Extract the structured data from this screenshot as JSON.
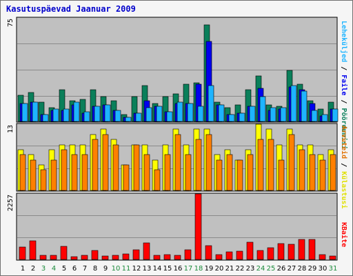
{
  "title": "Kasutuspäevad Jaanuar 2009",
  "colors": {
    "background": "#c0c0c0",
    "grid": "#8a8a8a",
    "visits": "#0a7f5a",
    "pages": "#0000ee",
    "files": "#1eb4ff",
    "hosts": "#ff8000",
    "bytes": "#ff0000",
    "weekend_label": "#1a8a3a",
    "hosts_label": "#e07000",
    "bytes_label": "#ff0000"
  },
  "chart_data": [
    {
      "type": "bar",
      "panel": "hits",
      "ymax_label": "75",
      "ylim": [
        0,
        75
      ],
      "categories": [
        "1",
        "2",
        "3",
        "4",
        "5",
        "6",
        "7",
        "8",
        "9",
        "10",
        "11",
        "12",
        "13",
        "14",
        "15",
        "16",
        "17",
        "18",
        "19",
        "20",
        "21",
        "22",
        "23",
        "24",
        "25",
        "26",
        "27",
        "28",
        "29",
        "30",
        "31"
      ],
      "series": [
        {
          "name": "Pöördumisi",
          "values": [
            19,
            21,
            14,
            10,
            23,
            15,
            16,
            23,
            18,
            15,
            5,
            18,
            26,
            13,
            18,
            20,
            27,
            28,
            70,
            14,
            10,
            12,
            23,
            33,
            12,
            11,
            37,
            27,
            15,
            9,
            14
          ]
        },
        {
          "name": "Faile",
          "values": [
            13,
            14,
            5,
            8,
            8,
            12,
            6,
            11,
            12,
            8,
            3,
            6,
            15,
            11,
            7,
            13,
            13,
            27,
            58,
            12,
            5,
            6,
            11,
            24,
            8,
            9,
            25,
            23,
            13,
            4,
            9
          ]
        },
        {
          "name": "Leheküljed",
          "values": [
            13,
            14,
            5,
            9,
            9,
            14,
            7,
            11,
            12,
            8,
            3,
            6,
            10,
            11,
            7,
            14,
            13,
            11,
            26,
            12,
            5,
            6,
            11,
            18,
            10,
            10,
            26,
            22,
            8,
            5,
            9
          ]
        }
      ],
      "side_labels": [
        "Pöördumisi",
        "Faile",
        "Leheküljed"
      ]
    },
    {
      "type": "bar",
      "panel": "visits",
      "ymax_label": "13",
      "ylim": [
        0,
        13
      ],
      "categories": [
        "1",
        "2",
        "3",
        "4",
        "5",
        "6",
        "7",
        "8",
        "9",
        "10",
        "11",
        "12",
        "13",
        "14",
        "15",
        "16",
        "17",
        "18",
        "19",
        "20",
        "21",
        "22",
        "23",
        "24",
        "25",
        "26",
        "27",
        "28",
        "29",
        "30",
        "31"
      ],
      "series": [
        {
          "name": "Külastusi",
          "values": [
            8,
            7,
            5,
            8,
            9,
            9,
            9,
            11,
            12,
            10,
            5,
            9,
            9,
            6,
            9,
            12,
            9,
            12,
            12,
            7,
            8,
            6,
            8,
            13,
            12,
            9,
            12,
            9,
            9,
            7,
            8
          ]
        },
        {
          "name": "Arvuteid",
          "values": [
            7,
            6,
            4,
            6,
            8,
            7,
            7,
            10,
            11,
            9,
            5,
            9,
            7,
            4,
            7,
            11,
            7,
            10,
            11,
            6,
            7,
            6,
            7,
            10,
            10,
            6,
            11,
            8,
            7,
            6,
            7
          ]
        }
      ],
      "side_labels": [
        "Arvuteid",
        "Külastusi"
      ]
    },
    {
      "type": "bar",
      "panel": "kbytes",
      "ymax_label": "2257",
      "ylim": [
        0,
        2257
      ],
      "categories": [
        "1",
        "2",
        "3",
        "4",
        "5",
        "6",
        "7",
        "8",
        "9",
        "10",
        "11",
        "12",
        "13",
        "14",
        "15",
        "16",
        "17",
        "18",
        "19",
        "20",
        "21",
        "22",
        "23",
        "24",
        "25",
        "26",
        "27",
        "28",
        "29",
        "30",
        "31"
      ],
      "series": [
        {
          "name": "KBaite",
          "values": [
            420,
            640,
            150,
            150,
            440,
            90,
            140,
            300,
            120,
            140,
            200,
            330,
            560,
            140,
            160,
            150,
            330,
            2257,
            480,
            170,
            250,
            280,
            600,
            300,
            400,
            550,
            530,
            700,
            700,
            170,
            120
          ]
        }
      ],
      "side_labels": [
        "KBaite"
      ]
    }
  ],
  "x_axis": {
    "labels": [
      "1",
      "2",
      "3",
      "4",
      "5",
      "6",
      "7",
      "8",
      "9",
      "10",
      "11",
      "12",
      "13",
      "14",
      "15",
      "16",
      "17",
      "18",
      "19",
      "20",
      "21",
      "22",
      "23",
      "24",
      "25",
      "26",
      "27",
      "28",
      "29",
      "30",
      "31"
    ],
    "weekend_days": [
      "3",
      "4",
      "10",
      "11",
      "17",
      "18",
      "24",
      "25",
      "31"
    ]
  }
}
